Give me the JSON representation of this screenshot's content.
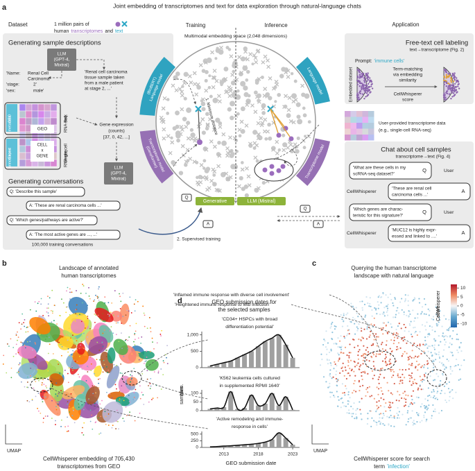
{
  "figure_title": "Joint embedding of transcriptomes and text for data exploration through natural-language chats",
  "panel_a": {
    "label": "a",
    "dataset": {
      "heading": "Dataset",
      "pairs_line1": "1 million pairs of",
      "pairs_line2": [
        "human",
        "transcriptomes",
        "and",
        "text"
      ]
    },
    "sample_descriptions": {
      "heading": "Generating sample descriptions",
      "llm": [
        "LLM",
        "(GPT-4,",
        "Mixtral)"
      ],
      "fields": [
        "'Name:",
        "'stage:",
        "'sex:"
      ],
      "field_values": [
        "Renal Cell",
        "Carcinoma'",
        "2'",
        "male'"
      ],
      "description": [
        "'Renal cell carcinoma",
        "tissue sample taken",
        "from a male patient",
        "at stage 2, ...'"
      ],
      "geo_metadata": [
        "GEO",
        "metadata"
      ],
      "expert_annotations": [
        "Expert",
        "annotations"
      ],
      "geo": "GEO",
      "cellxgene": [
        "CELL",
        "x",
        "GENE"
      ],
      "bulk": [
        "Bulk",
        "RNA-seq"
      ],
      "single_cell": [
        "Single-cell",
        "RNA-seq"
      ],
      "gene_expression": [
        "Gene expression",
        "(counts)",
        "[37, 0, 42, ...]"
      ]
    },
    "conversations": {
      "heading": "Generating conversations",
      "llm": [
        "LLM",
        "(GPT-4,",
        "Mixtral)"
      ],
      "messages": [
        "Q: 'Describe this sample'",
        "A: 'These are renal carcinoma cells ...'",
        "Q: 'Which genes/pathways are active?'",
        "A: 'The most active genes are ..., ...'"
      ],
      "count": "100,000 training conversations"
    },
    "center": {
      "training": "Training",
      "inference": "Inference",
      "space": "Multimodal embedding space (2,048 dimensions)",
      "lm_left": [
        "Language model",
        "(BioBERT)"
      ],
      "tm_left": [
        "Transcriptome model",
        "(Geneformer)"
      ],
      "lm_right": "Language model",
      "tm_right": "Transcriptome model",
      "min_distance": "1. Minimum distance",
      "generative": "Generative",
      "llm": "LLM (Mistral)",
      "supervised": "2. Supervised training",
      "q": "Q",
      "a": "A"
    },
    "application": {
      "heading": "Application",
      "labeling": {
        "heading": "Free-text cell labeling",
        "subheading": "text→transcriptome (Fig. 2)",
        "prompt": [
          "Prompt:",
          "'immune cells'"
        ],
        "embedded": "Embedded dataset",
        "matching": [
          "Term-matching",
          "via embedding",
          "similarity"
        ],
        "score": [
          "CellWhisperer",
          "score"
        ]
      },
      "user_data": [
        "User-provided transcriptome data",
        "(e.g., single-cell RNA-seq)"
      ],
      "chat": {
        "heading": "Chat about cell samples",
        "subheading": "transcriptome→text (Fig. 4)",
        "messages": [
          {
            "speaker": "User",
            "badge": "Q",
            "text": [
              "'What are these cells in my",
              "scRNA-seq dataset?'"
            ]
          },
          {
            "speaker": "CellWhisperer",
            "badge": "A",
            "text": [
              "'These are renal cell",
              "carcinoma cells ...'"
            ]
          },
          {
            "speaker": "User",
            "badge": "Q",
            "text": [
              "'Which genes are charac-",
              "teristic for this signature?'"
            ]
          },
          {
            "speaker": "CellWhisperer",
            "badge": "A",
            "text": [
              "'MUC12 is highly expr-",
              "essed and linked to ....'"
            ]
          }
        ]
      }
    }
  },
  "panel_b": {
    "label": "b",
    "title": [
      "Landscape of annotated",
      "human transcriptomes"
    ],
    "axis": "UMAP",
    "caption": [
      "CellWhisperer embedding of 705,430",
      "transcriptomes from GEO"
    ]
  },
  "panel_c": {
    "label": "c",
    "title": [
      "Querying the human transcriptome",
      "landscape with natural language"
    ],
    "annotations": [
      "'Inflamed immune response with diverse cell involvement'",
      "'Heightened immune response to Mtb infection'"
    ],
    "colorbar": {
      "label": [
        "CellWhisperer",
        "score"
      ],
      "lim": [
        -12,
        12
      ],
      "ticks": [
        10,
        5,
        0,
        -5,
        -10
      ]
    },
    "axis": "UMAP",
    "caption": [
      "CellWhisperer score for search",
      "term",
      "'infection'"
    ]
  },
  "panel_d": {
    "label": "d",
    "title": [
      "GEO submission dates for",
      "the selected samples"
    ],
    "y_label": [
      "Num.",
      "samples"
    ],
    "x_label": "GEO submission date"
  },
  "chart_data": [
    {
      "type": "bar",
      "title": [
        "'CD34+ HSPCs with broad",
        "differentiation potential'"
      ],
      "x": [
        2011,
        2012,
        2013,
        2014,
        2015,
        2016,
        2017,
        2018,
        2019,
        2020,
        2021,
        2022,
        2023
      ],
      "values": [
        50,
        100,
        150,
        200,
        300,
        400,
        500,
        650,
        800,
        900,
        1000,
        700,
        300
      ],
      "xlim": [
        2010,
        2024
      ],
      "ylim": [
        0,
        1100
      ],
      "yticks": [
        0,
        500,
        {
          "value": 1000,
          "label": "1,000"
        }
      ],
      "color": "#a0a0a0",
      "line_color": "#111111"
    },
    {
      "type": "bar",
      "title": [
        "'K562 leukemia cells cultured",
        "in supplemented RPMI 1640'"
      ],
      "x": [
        2011,
        2012,
        2013,
        2014,
        2015,
        2016,
        2017,
        2018,
        2019,
        2020,
        2021,
        2022,
        2023
      ],
      "values": [
        10,
        15,
        20,
        110,
        10,
        15,
        90,
        30,
        40,
        100,
        30,
        80,
        5
      ],
      "xlim": [
        2010,
        2024
      ],
      "ylim": [
        0,
        120
      ],
      "yticks": [
        0,
        50,
        100
      ],
      "color": "#a0a0a0",
      "line_color": "#111111"
    },
    {
      "type": "bar",
      "title": [
        "'Active remodeling and immune-",
        "response in cells'"
      ],
      "x": [
        2011,
        2012,
        2013,
        2014,
        2015,
        2016,
        2017,
        2018,
        2019,
        2020,
        2021,
        2022,
        2023
      ],
      "values": [
        20,
        30,
        50,
        60,
        80,
        100,
        120,
        150,
        200,
        300,
        550,
        350,
        100
      ],
      "xlim": [
        2010,
        2024
      ],
      "ylim": [
        0,
        600
      ],
      "yticks": [
        0,
        250,
        500
      ],
      "xticks": [
        2013,
        2018,
        2023
      ],
      "color": "#a0a0a0",
      "line_color": "#111111"
    }
  ]
}
